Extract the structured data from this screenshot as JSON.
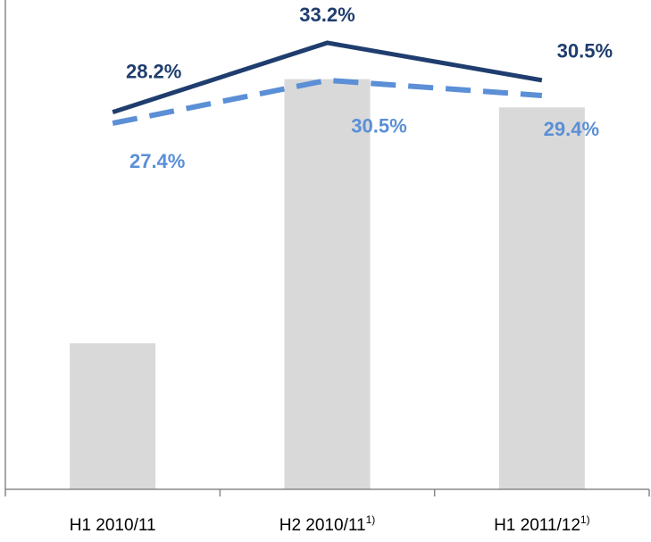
{
  "chart_data": {
    "type": "bar-line",
    "categories": [
      "H1 2010/11",
      "H2 2010/11",
      "H1 2011/12"
    ],
    "category_notes": [
      null,
      "1)",
      "1)"
    ],
    "ylim": [
      1,
      35
    ],
    "y2lim": [
      0,
      100
    ],
    "series": [
      {
        "type": "bar",
        "axis": "y2",
        "color": "#d9d9d9",
        "values": [
          31,
          87,
          81
        ]
      },
      {
        "type": "line",
        "color": "#1f3d6e",
        "dash": false,
        "values": [
          28.2,
          33.2,
          30.5
        ],
        "value_labels": [
          "28.2%",
          "33.2%",
          "30.5%"
        ]
      },
      {
        "type": "line",
        "color": "#5b8fd6",
        "dash": true,
        "values": [
          27.4,
          30.5,
          29.4
        ],
        "value_labels": [
          "27.4%",
          "30.5%",
          "29.4%"
        ]
      }
    ]
  }
}
